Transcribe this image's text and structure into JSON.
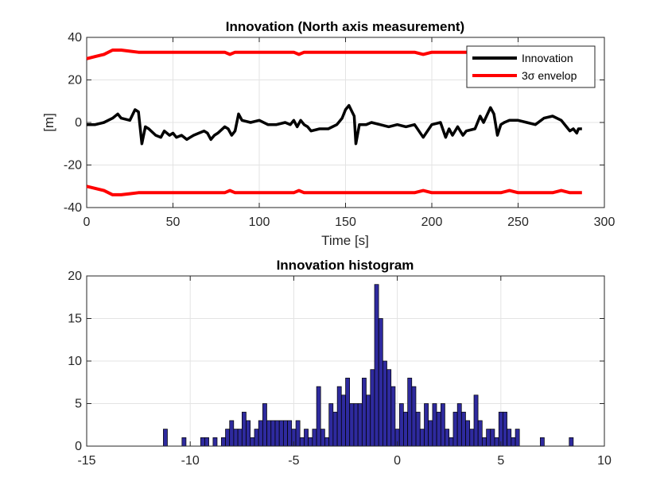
{
  "chart_data": [
    {
      "type": "line",
      "title": "Innovation (North axis measurement)",
      "xlabel": "Time [s]",
      "ylabel": "[m]",
      "xlim": [
        0,
        300
      ],
      "ylim": [
        -40,
        40
      ],
      "xticks": [
        "0",
        "50",
        "100",
        "150",
        "200",
        "250",
        "300"
      ],
      "yticks": [
        "-40",
        "-20",
        "0",
        "20",
        "40"
      ],
      "grid": true,
      "legend_position": "top-right",
      "series": [
        {
          "name": "Innovation",
          "color": "#000000",
          "x": [
            0,
            5,
            10,
            15,
            18,
            20,
            25,
            28,
            30,
            32,
            34,
            36,
            40,
            43,
            45,
            48,
            50,
            52,
            55,
            58,
            60,
            62,
            65,
            68,
            70,
            72,
            74,
            76,
            80,
            82,
            84,
            86,
            88,
            90,
            95,
            100,
            105,
            110,
            115,
            118,
            120,
            122,
            124,
            126,
            128,
            130,
            135,
            140,
            145,
            148,
            150,
            152,
            155,
            156,
            158,
            160,
            162,
            165,
            170,
            175,
            180,
            185,
            190,
            195,
            200,
            205,
            208,
            210,
            212,
            215,
            218,
            220,
            225,
            228,
            230,
            234,
            236,
            238,
            240,
            242,
            245,
            250,
            255,
            260,
            265,
            270,
            275,
            278,
            280,
            282,
            284,
            285,
            287
          ],
          "y": [
            -1,
            -1,
            0,
            2,
            4,
            2,
            1,
            6,
            5,
            -10,
            -2,
            -3,
            -6,
            -7,
            -4,
            -6,
            -5,
            -7,
            -6,
            -8,
            -7,
            -6,
            -5,
            -4,
            -5,
            -8,
            -6,
            -5,
            -2,
            -3,
            -6,
            -4,
            4,
            1,
            0,
            1,
            -1,
            -1,
            0,
            -1,
            1,
            -2,
            1,
            -1,
            -2,
            -4,
            -3,
            -3,
            -1,
            2,
            6,
            8,
            3,
            -10,
            -1,
            -1,
            -1,
            0,
            -1,
            -2,
            -1,
            -2,
            -1,
            -7,
            -1,
            0,
            -7,
            -3,
            -6,
            -2,
            -6,
            -4,
            -3,
            3,
            0,
            7,
            4,
            -6,
            -1,
            0,
            1,
            1,
            0,
            -1,
            2,
            3,
            1,
            -2,
            -4,
            -3,
            -5,
            -3,
            -3
          ]
        },
        {
          "name": "3σ envelop",
          "color": "#ff0000",
          "x": [
            0,
            5,
            10,
            15,
            20,
            25,
            30,
            40,
            50,
            60,
            70,
            80,
            83,
            86,
            90,
            100,
            110,
            120,
            123,
            126,
            130,
            140,
            150,
            160,
            170,
            180,
            190,
            195,
            200,
            205,
            210,
            220,
            230,
            240,
            245,
            250,
            260,
            270,
            275,
            280,
            287
          ],
          "y": [
            30,
            31,
            32,
            34,
            34,
            33.5,
            33,
            33,
            33,
            33,
            33,
            33,
            32,
            33,
            33,
            33,
            33,
            33,
            32,
            33,
            33,
            33,
            33,
            33,
            33,
            33,
            33,
            32,
            33,
            33,
            33,
            33,
            33,
            33,
            32,
            33,
            33,
            33,
            32,
            33,
            33
          ],
          "lower_y": [
            -30,
            -31,
            -32,
            -34,
            -34,
            -33.5,
            -33,
            -33,
            -33,
            -33,
            -33,
            -33,
            -32,
            -33,
            -33,
            -33,
            -33,
            -33,
            -32,
            -33,
            -33,
            -33,
            -33,
            -33,
            -33,
            -33,
            -33,
            -32,
            -33,
            -33,
            -33,
            -33,
            -33,
            -33,
            -32,
            -33,
            -33,
            -33,
            -32,
            -33,
            -33
          ]
        }
      ]
    },
    {
      "type": "bar",
      "title": "Innovation histogram",
      "xlim": [
        -15,
        10
      ],
      "ylim": [
        0,
        20
      ],
      "xticks": [
        "-15",
        "-10",
        "-5",
        "0",
        "5",
        "10"
      ],
      "yticks": [
        "0",
        "5",
        "10",
        "15",
        "20"
      ],
      "grid": true,
      "bar_color": "#2e2a9e",
      "bin_width": 0.196,
      "bins": [
        -11.2,
        -10.3,
        -9.4,
        -9.2,
        -8.8,
        -8.4,
        -8.2,
        -8.0,
        -7.8,
        -7.6,
        -7.4,
        -7.2,
        -7.0,
        -6.8,
        -6.6,
        -6.4,
        -6.2,
        -6.0,
        -5.8,
        -5.6,
        -5.4,
        -5.2,
        -5.0,
        -4.8,
        -4.6,
        -4.4,
        -4.2,
        -4.0,
        -3.8,
        -3.6,
        -3.4,
        -3.2,
        -3.0,
        -2.8,
        -2.6,
        -2.4,
        -2.2,
        -2.0,
        -1.8,
        -1.6,
        -1.4,
        -1.2,
        -1.0,
        -0.8,
        -0.6,
        -0.4,
        -0.2,
        0.0,
        0.2,
        0.4,
        0.6,
        0.8,
        1.0,
        1.2,
        1.4,
        1.6,
        1.8,
        2.0,
        2.2,
        2.4,
        2.6,
        2.8,
        3.0,
        3.2,
        3.4,
        3.6,
        3.8,
        4.0,
        4.2,
        4.4,
        4.6,
        4.8,
        5.0,
        5.2,
        5.4,
        5.6,
        5.8,
        7.0,
        8.4
      ],
      "counts": [
        2,
        1,
        1,
        1,
        1,
        1,
        2,
        3,
        2,
        2,
        4,
        3,
        1,
        2,
        3,
        5,
        3,
        3,
        3,
        3,
        3,
        3,
        2,
        3,
        1,
        2,
        1,
        2,
        7,
        2,
        1,
        5,
        4,
        7,
        6,
        8,
        5,
        5,
        5,
        8,
        6,
        9,
        19,
        15,
        10,
        9,
        7,
        2,
        5,
        4,
        8,
        7,
        4,
        2,
        5,
        3,
        5,
        4,
        5,
        2,
        1,
        4,
        5,
        4,
        3,
        2,
        6,
        3,
        1,
        2,
        2,
        1,
        4,
        4,
        2,
        1,
        2,
        1,
        1
      ]
    }
  ]
}
